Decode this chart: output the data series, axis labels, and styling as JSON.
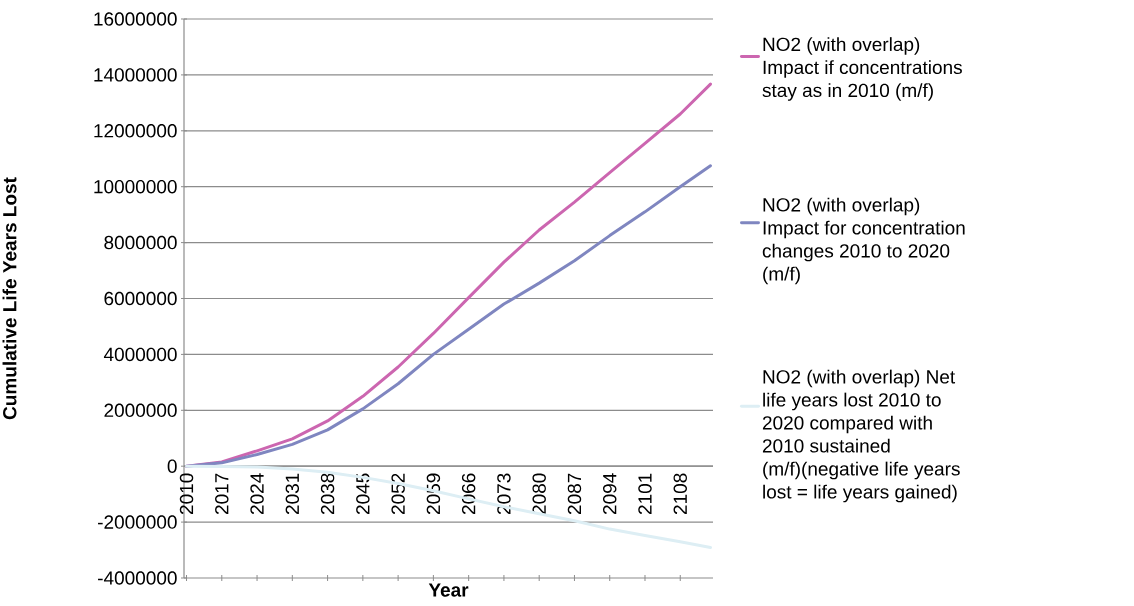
{
  "chart_data": {
    "type": "line",
    "xlabel": "Year",
    "ylabel": "Cumulative Life Years Lost",
    "xlim": [
      2009.5,
      2114.5
    ],
    "xticks": [
      2010,
      2017,
      2024,
      2031,
      2038,
      2045,
      2052,
      2059,
      2066,
      2073,
      2080,
      2087,
      2094,
      2101,
      2108
    ],
    "ylim": [
      -4000000,
      16000000
    ],
    "yticks": [
      -4000000,
      -2000000,
      0,
      2000000,
      4000000,
      6000000,
      8000000,
      10000000,
      12000000,
      14000000,
      16000000
    ],
    "grid": "y",
    "legend": "right",
    "x": [
      2010,
      2017,
      2024,
      2031,
      2038,
      2045,
      2052,
      2059,
      2066,
      2073,
      2080,
      2087,
      2094,
      2101,
      2108,
      2114
    ],
    "series": [
      {
        "name": "NO2 (with overlap) Impact if concentrations stay as in 2010 (m/f)",
        "color": "#cc66b0",
        "values": [
          0,
          150000,
          550000,
          980000,
          1620000,
          2500000,
          3550000,
          4750000,
          6030000,
          7300000,
          8450000,
          9450000,
          10500000,
          11550000,
          12600000,
          13670000
        ]
      },
      {
        "name": "NO2 (with overlap) Impact for concentration changes 2010 to 2020 (m/f)",
        "color": "#7f86c0",
        "values": [
          0,
          120000,
          420000,
          780000,
          1300000,
          2050000,
          2950000,
          4000000,
          4900000,
          5800000,
          6550000,
          7350000,
          8250000,
          9100000,
          10000000,
          10750000
        ]
      },
      {
        "name": "NO2 (with overlap) Net life years lost 2010 to 2020 compared with 2010 sustained (m/f)(negative life years lost = life years gained)",
        "color": "#ddeef4",
        "values": [
          0,
          -10000,
          -30000,
          -100000,
          -220000,
          -400000,
          -620000,
          -880000,
          -1170000,
          -1450000,
          -1700000,
          -1950000,
          -2250000,
          -2480000,
          -2700000,
          -2910000
        ]
      }
    ]
  }
}
